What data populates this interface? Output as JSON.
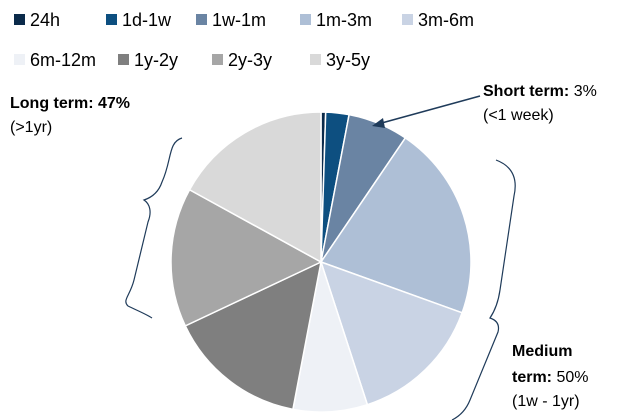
{
  "chart_data": {
    "type": "pie",
    "categories": [
      "24h",
      "1d-1w",
      "1w-1m",
      "1m-3m",
      "3m-6m",
      "6m-12m",
      "1y-2y",
      "2y-3y",
      "3y-5y"
    ],
    "values": [
      0.5,
      2.5,
      6.5,
      21,
      14.5,
      8,
      15,
      15,
      17
    ],
    "colors": [
      "#0b2a4a",
      "#0d4f80",
      "#6a84a3",
      "#aebfd6",
      "#c9d3e4",
      "#eef1f6",
      "#7f7f7f",
      "#a6a6a6",
      "#d9d9d9"
    ],
    "legend": "top",
    "annotations": [
      {
        "label": [
          "Short term:"
        ],
        "value": "3%",
        "note": "(<1 week)"
      },
      {
        "label": [
          "Long term:"
        ],
        "value": "47%",
        "note": "(>1yr)"
      },
      {
        "label": [
          "Medium",
          "term:"
        ],
        "value": "50%",
        "note": "(1w - 1yr)"
      }
    ]
  }
}
